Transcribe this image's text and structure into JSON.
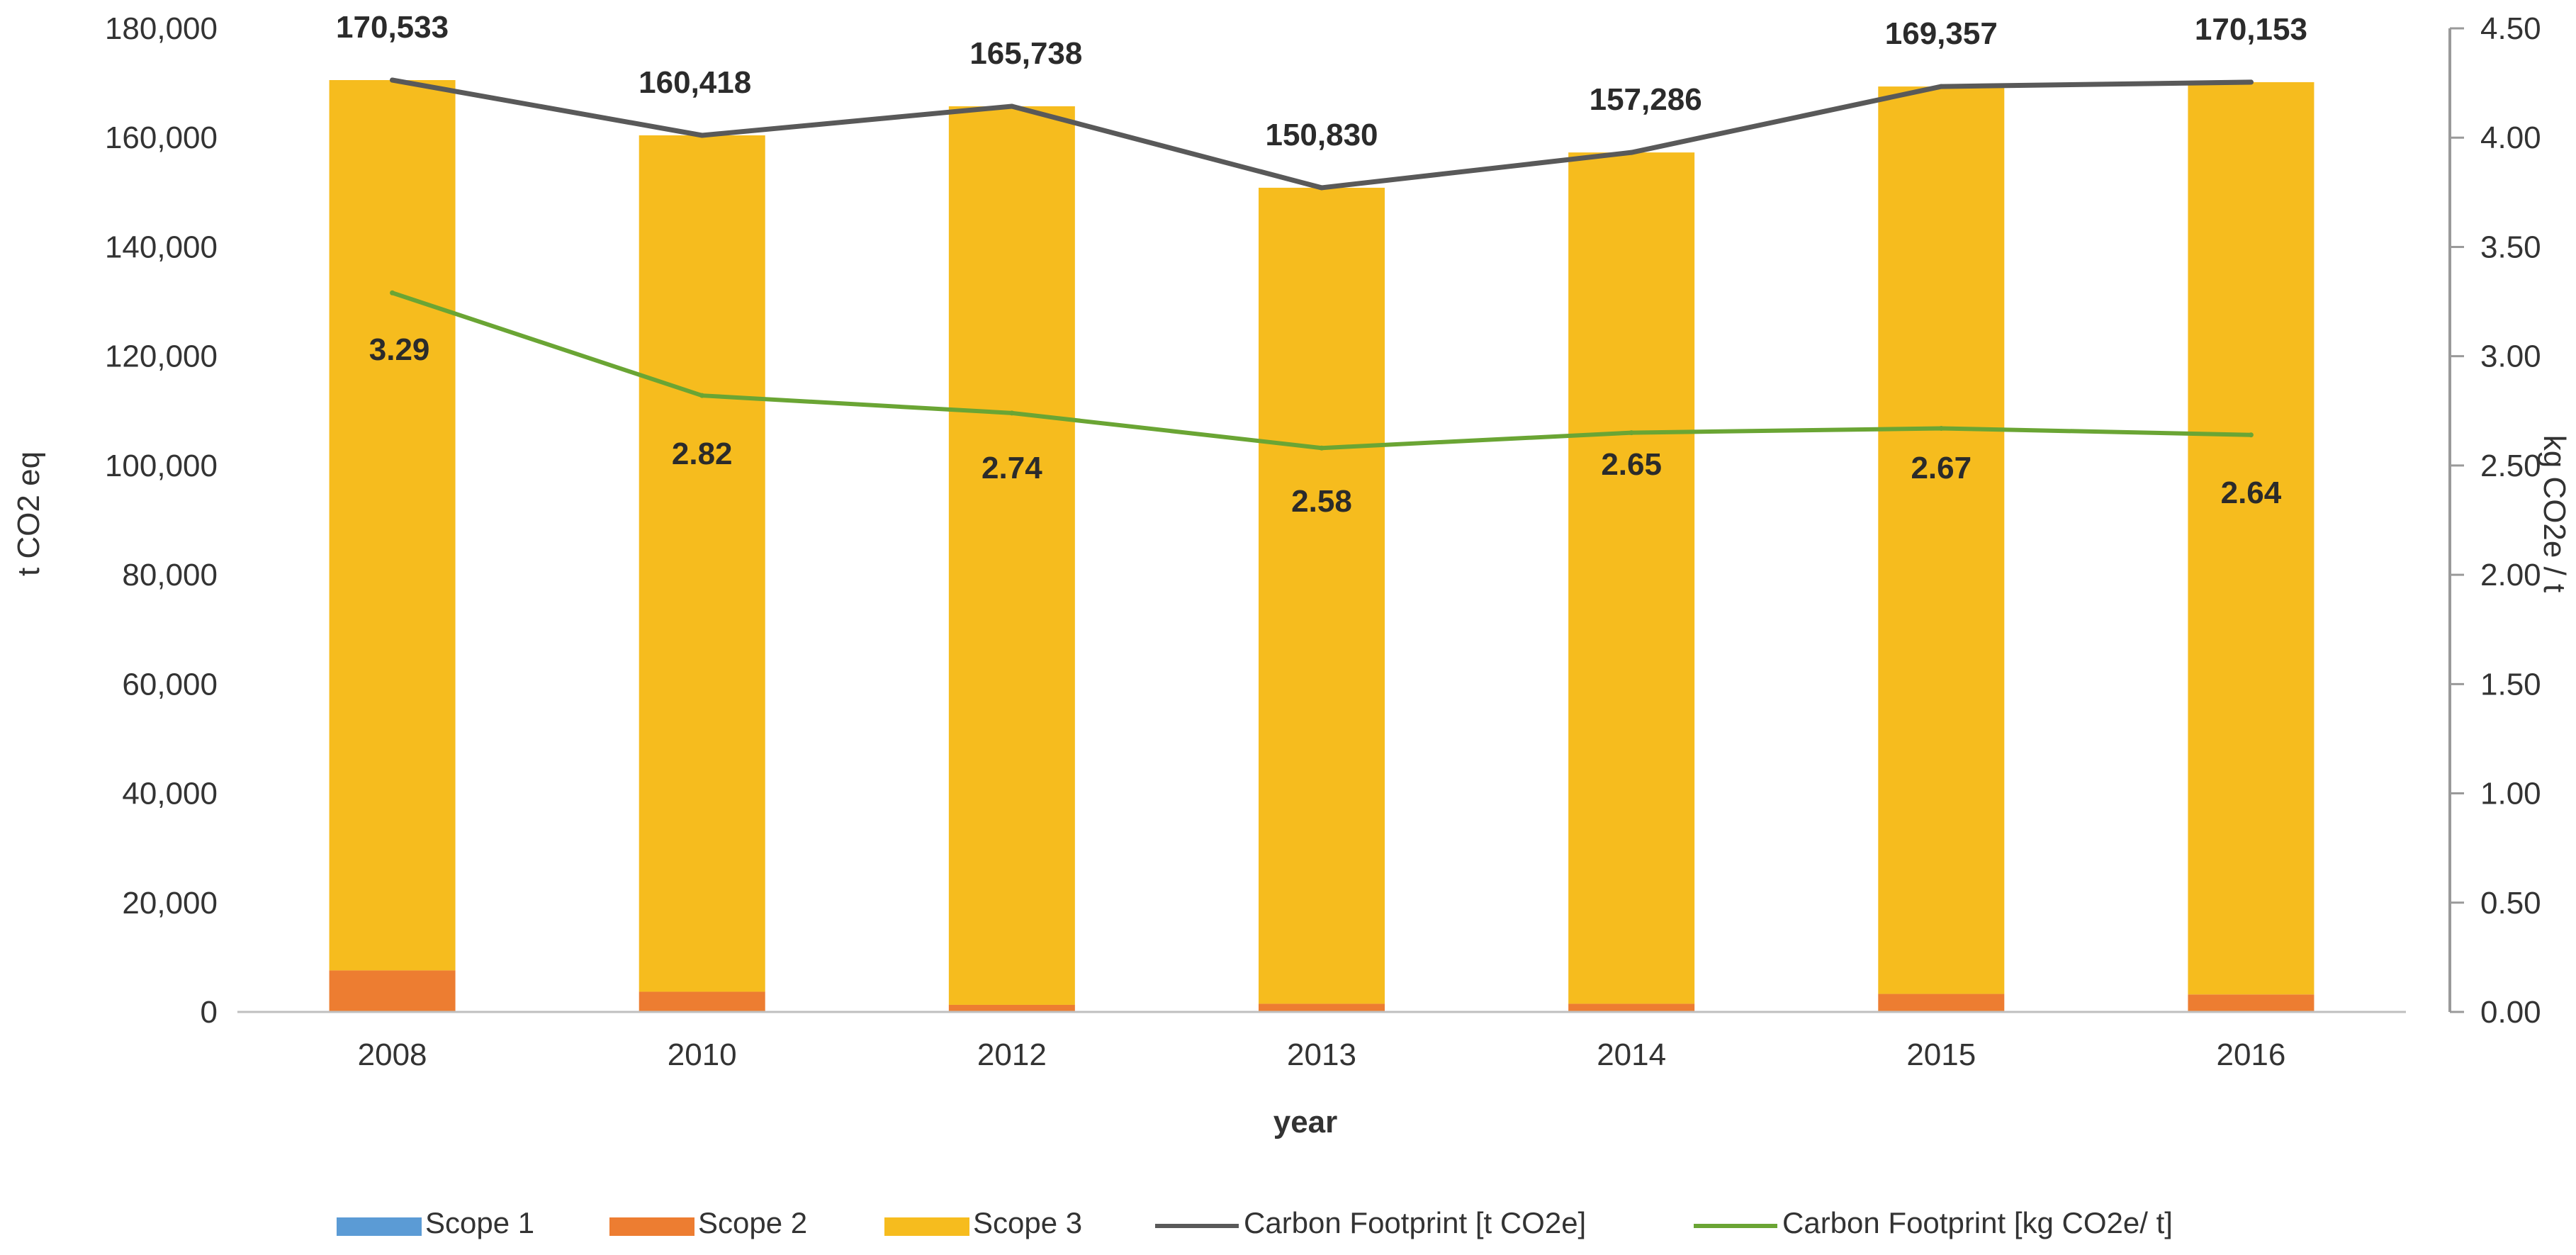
{
  "chart_data": {
    "type": "bar",
    "stacked": true,
    "categories": [
      "2008",
      "2010",
      "2012",
      "2013",
      "2014",
      "2015",
      "2016"
    ],
    "xlabel": "year",
    "ylabel": "t  CO2 eq",
    "y2label": "kg CO2e / t",
    "ylim": [
      0,
      180000
    ],
    "y2lim": [
      0,
      4.5
    ],
    "yticks": [
      "0",
      "20,000",
      "40,000",
      "60,000",
      "80,000",
      "100,000",
      "120,000",
      "140,000",
      "160,000",
      "180,000"
    ],
    "y2ticks": [
      "0.00",
      "0.50",
      "1.00",
      "1.50",
      "2.00",
      "2.50",
      "3.00",
      "3.50",
      "4.00",
      "4.50"
    ],
    "series": [
      {
        "name": "Scope 1",
        "type": "bar",
        "color": "#5b9bd5",
        "values": [
          0,
          0,
          0,
          0,
          0,
          0,
          0
        ]
      },
      {
        "name": "Scope 2",
        "type": "bar",
        "color": "#ed7d31",
        "values": [
          7600,
          3700,
          1300,
          1500,
          1500,
          3300,
          3200
        ]
      },
      {
        "name": "Scope 3",
        "type": "bar",
        "color": "#f6bc1e",
        "values": [
          162933,
          156718,
          164438,
          149330,
          155786,
          166057,
          166953
        ]
      },
      {
        "name": "Carbon Footprint [t CO2e]",
        "type": "line",
        "axis": "left",
        "color": "#595959",
        "values": [
          170533,
          160418,
          165738,
          150830,
          157286,
          169357,
          170153
        ],
        "labels": [
          "170,533",
          "160,418",
          "165,738",
          "150,830",
          "157,286",
          "169,357",
          "170,153"
        ]
      },
      {
        "name": "Carbon Footprint [kg CO2e/ t]",
        "type": "line",
        "axis": "right",
        "color": "#6aa534",
        "values": [
          3.29,
          2.82,
          2.74,
          2.58,
          2.65,
          2.67,
          2.64
        ],
        "labels": [
          "3.29",
          "2.82",
          "2.74",
          "2.58",
          "2.65",
          "2.67",
          "2.64"
        ]
      }
    ]
  }
}
